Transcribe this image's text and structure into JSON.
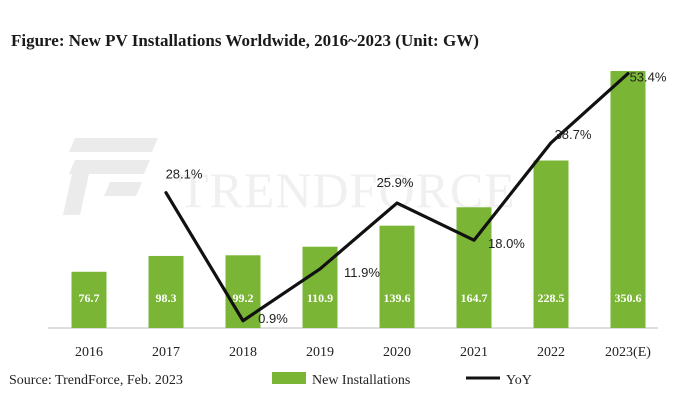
{
  "chart_data": {
    "type": "bar",
    "title": "Figure: New PV Installations Worldwide, 2016~2023 (Unit: GW)",
    "categories": [
      "2016",
      "2017",
      "2018",
      "2019",
      "2020",
      "2021",
      "2022",
      "2023(E)"
    ],
    "series": [
      {
        "name": "New Installations",
        "type": "bar",
        "values": [
          76.7,
          98.3,
          99.2,
          110.9,
          139.6,
          164.7,
          228.5,
          350.6
        ],
        "labels": [
          "76.7",
          "98.3",
          "99.2",
          "110.9",
          "139.6",
          "164.7",
          "228.5",
          "350.6"
        ],
        "color": "#7ab535"
      },
      {
        "name": "YoY",
        "type": "line",
        "values": [
          null,
          28.1,
          0.9,
          11.9,
          25.9,
          18.0,
          38.7,
          53.4
        ],
        "labels": [
          "",
          "28.1%",
          "0.9%",
          "11.9%",
          "25.9%",
          "18.0%",
          "38.7%",
          "53.4%"
        ],
        "color": "#111111"
      }
    ],
    "ylim_bars": [
      0,
      360
    ],
    "ylim_line": [
      0,
      55
    ],
    "legend": "bottom-center",
    "grid": false
  },
  "source": "Source: TrendForce, Feb. 2023",
  "watermark": "TRENDFORCE"
}
